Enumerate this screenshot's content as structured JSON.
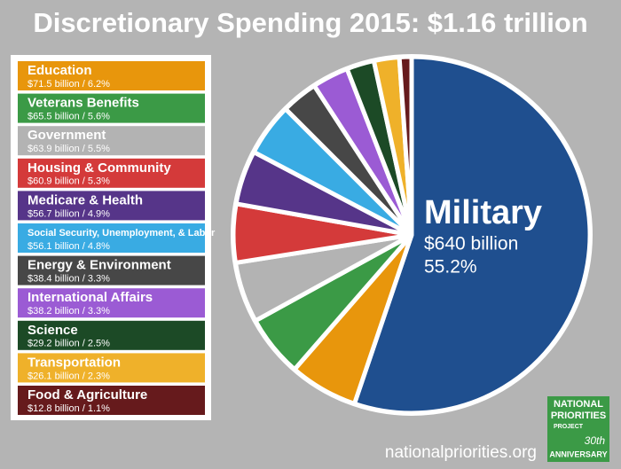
{
  "chart_data": {
    "type": "pie",
    "title": "Discretionary Spending 2015: $1.16 trillion",
    "categories": [
      "Military",
      "Education",
      "Veterans Benefits",
      "Government",
      "Housing & Community",
      "Medicare & Health",
      "Social Security, Unemployment, & Labor",
      "Energy & Environment",
      "International Affairs",
      "Science",
      "Transportation",
      "Food & Agriculture"
    ],
    "values": [
      55.2,
      6.2,
      5.6,
      5.5,
      5.3,
      4.9,
      4.8,
      3.3,
      3.3,
      2.5,
      2.3,
      1.1
    ],
    "value_labels": [
      "55.2%",
      "$71.5 billion / 6.2%",
      "$65.5 billion / 5.6%",
      "$63.9 billion / 5.5%",
      "$60.9 billion / 5.3%",
      "$56.7 billion / 4.9%",
      "$56.1 billion / 4.8%",
      "$38.4 billion / 3.3%",
      "$38.2 billion / 3.3%",
      "$29.2 billion / 2.5%",
      "$26.1 billion / 2.3%",
      "$12.8 billion / 1.1%"
    ],
    "callout_amount": "$640 billion",
    "colors": [
      "#1f4f8f",
      "#e8960c",
      "#3b9a46",
      "#b3b3b3",
      "#d43a3a",
      "#563589",
      "#39abe3",
      "#474747",
      "#9b5bd4",
      "#1c4a26",
      "#efb12a",
      "#661a1c"
    ],
    "source": "nationalpriorities.org",
    "logo": [
      "NATIONAL",
      "PRIORITIES",
      "PROJECT",
      "30th",
      "ANNIVERSARY"
    ]
  }
}
